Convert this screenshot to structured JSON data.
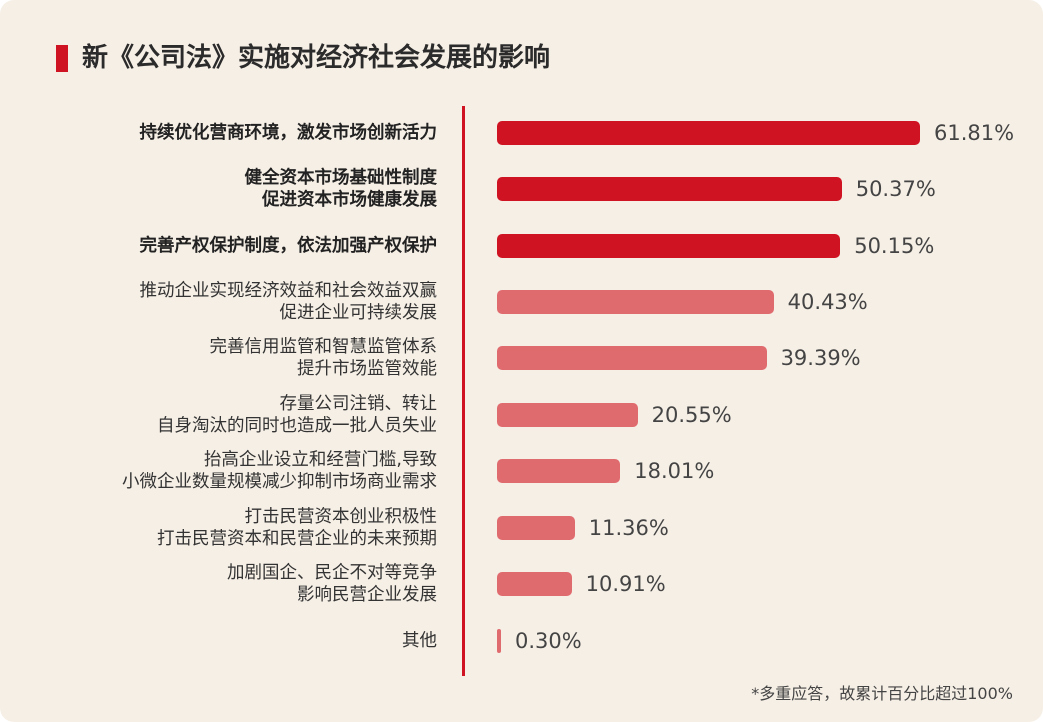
{
  "title": "新《公司法》实施对经济社会发展的影响",
  "footnote": "*多重应答，故累计百分比超过100%",
  "colors": {
    "highlight": "#cf1322",
    "normal": "#e06b6f",
    "divider": "#cf1322",
    "background": "#f6efe6"
  },
  "chart_data": {
    "type": "bar",
    "orientation": "horizontal",
    "xlim": [
      0,
      70
    ],
    "grid": false,
    "categories": [
      [
        "持续优化营商环境，激发市场创新活力"
      ],
      [
        "健全资本市场基础性制度",
        "促进资本市场健康发展"
      ],
      [
        "完善产权保护制度，依法加强产权保护"
      ],
      [
        "推动企业实现经济效益和社会效益双赢",
        "促进企业可持续发展"
      ],
      [
        "完善信用监管和智慧监管体系",
        "提升市场监管效能"
      ],
      [
        "存量公司注销、转让",
        "自身淘汰的同时也造成一批人员失业"
      ],
      [
        "抬高企业设立和经营门槛,导致",
        "小微企业数量规模减少抑制市场商业需求"
      ],
      [
        "打击民营资本创业积极性",
        "打击民营资本和民营企业的未来预期"
      ],
      [
        "加剧国企、民企不对等竞争",
        "影响民营企业发展"
      ],
      [
        "其他"
      ]
    ],
    "values": [
      61.81,
      50.37,
      50.15,
      40.43,
      39.39,
      20.55,
      18.01,
      11.36,
      10.91,
      0.3
    ],
    "value_labels": [
      "61.81%",
      "50.37%",
      "50.15%",
      "40.43%",
      "39.39%",
      "20.55%",
      "18.01%",
      "11.36%",
      "10.91%",
      "0.30%"
    ],
    "highlighted": [
      true,
      true,
      true,
      false,
      false,
      false,
      false,
      false,
      false,
      false
    ]
  }
}
